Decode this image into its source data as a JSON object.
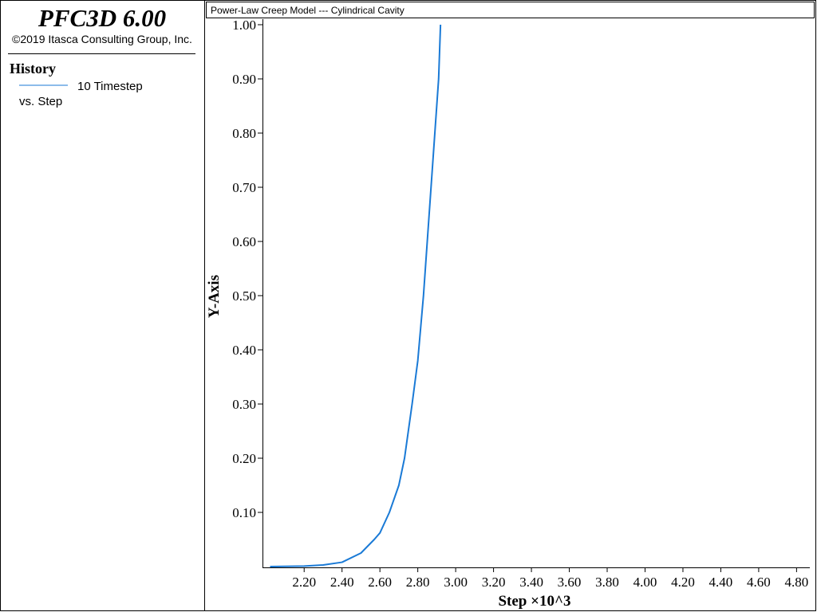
{
  "app": {
    "title": "PFC3D 6.00",
    "copyright": "©2019 Itasca Consulting Group, Inc."
  },
  "chart_data": {
    "type": "line",
    "title": "Power-Law Creep Model --- Cylindrical Cavity",
    "legend_title": "History",
    "legend_note": "vs. Step",
    "xlabel": "Step ×10^3",
    "ylabel": "Y-Axis",
    "x": [
      2.02,
      2.2,
      2.3,
      2.4,
      2.5,
      2.57,
      2.6,
      2.65,
      2.7,
      2.73,
      2.77,
      2.8,
      2.83,
      2.87,
      2.91,
      2.92
    ],
    "series": [
      {
        "name": "10 Timestep",
        "color": "#1a7ad6",
        "values": [
          0,
          0.001,
          0.003,
          0.008,
          0.025,
          0.05,
          0.062,
          0.1,
          0.15,
          0.2,
          0.3,
          0.38,
          0.5,
          0.7,
          0.9,
          1.0
        ]
      }
    ],
    "xlim": [
      1.98,
      4.87
    ],
    "ylim": [
      0,
      1.0
    ],
    "xticks": [
      {
        "value": 2.2,
        "label": "2.20"
      },
      {
        "value": 2.4,
        "label": "2.40"
      },
      {
        "value": 2.6,
        "label": "2.60"
      },
      {
        "value": 2.8,
        "label": "2.80"
      },
      {
        "value": 3.0,
        "label": "3.00"
      },
      {
        "value": 3.2,
        "label": "3.20"
      },
      {
        "value": 3.4,
        "label": "3.40"
      },
      {
        "value": 3.6,
        "label": "3.60"
      },
      {
        "value": 3.8,
        "label": "3.80"
      },
      {
        "value": 4.0,
        "label": "4.00"
      },
      {
        "value": 4.2,
        "label": "4.20"
      },
      {
        "value": 4.4,
        "label": "4.40"
      },
      {
        "value": 4.6,
        "label": "4.60"
      },
      {
        "value": 4.8,
        "label": "4.80"
      }
    ],
    "yticks": [
      {
        "value": 0.1,
        "label": "0.10"
      },
      {
        "value": 0.2,
        "label": "0.20"
      },
      {
        "value": 0.3,
        "label": "0.30"
      },
      {
        "value": 0.4,
        "label": "0.40"
      },
      {
        "value": 0.5,
        "label": "0.50"
      },
      {
        "value": 0.6,
        "label": "0.60"
      },
      {
        "value": 0.7,
        "label": "0.70"
      },
      {
        "value": 0.8,
        "label": "0.80"
      },
      {
        "value": 0.9,
        "label": "0.90"
      },
      {
        "value": 1.0,
        "label": "1.00"
      }
    ]
  }
}
